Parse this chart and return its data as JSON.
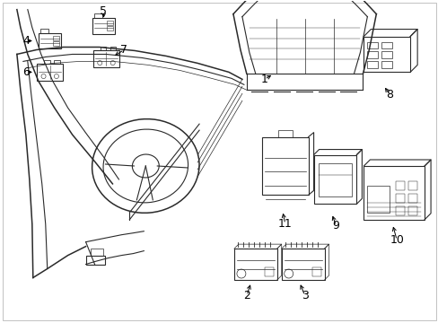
{
  "background_color": "#ffffff",
  "line_color": "#2a2a2a",
  "text_color": "#000000",
  "fig_width": 4.89,
  "fig_height": 3.6,
  "dpi": 100,
  "border_color": "#aaaaaa"
}
